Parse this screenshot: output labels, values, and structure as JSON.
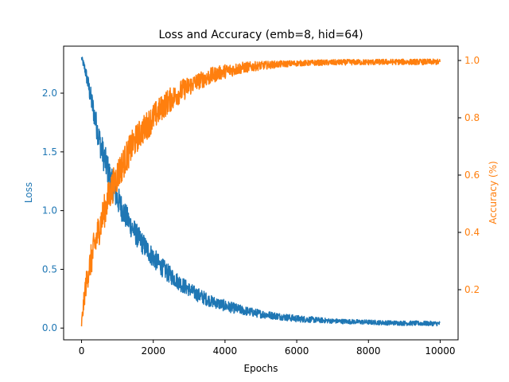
{
  "chart_data": {
    "type": "line",
    "title": "Loss and Accuracy (emb=8, hid=64)",
    "xlabel": "Epochs",
    "ylabel_left": "Loss",
    "ylabel_right": "Accuracy (%)",
    "xlim": [
      -500,
      10500
    ],
    "ylim_left": [
      -0.1,
      2.4
    ],
    "ylim_right": [
      0.025,
      1.05
    ],
    "x_ticks": [
      0,
      2000,
      4000,
      6000,
      8000,
      10000
    ],
    "x_tick_labels": [
      "0",
      "2000",
      "4000",
      "6000",
      "8000",
      "10000"
    ],
    "left_ticks": [
      0.0,
      0.5,
      1.0,
      1.5,
      2.0
    ],
    "left_tick_labels": [
      "0.0",
      "0.5",
      "1.0",
      "1.5",
      "2.0"
    ],
    "right_ticks": [
      0.2,
      0.4,
      0.6,
      0.8,
      1.0
    ],
    "right_tick_labels": [
      "0.2",
      "0.4",
      "0.6",
      "0.8",
      "1.0"
    ],
    "grid": false,
    "colors": {
      "loss": "#1f77b4",
      "accuracy": "#ff7f0e",
      "axis": "#000000"
    },
    "series": [
      {
        "axis": "left",
        "x": [
          0,
          100,
          200,
          300,
          400,
          500,
          600,
          700,
          800,
          900,
          1000,
          1200,
          1400,
          1600,
          1800,
          2000,
          2200,
          2400,
          2600,
          2800,
          3000,
          3200,
          3400,
          3600,
          3800,
          4000,
          4500,
          5000,
          5500,
          6000,
          6500,
          7000,
          7500,
          8000,
          8500,
          9000,
          9500,
          10000
        ],
        "y": [
          2.3,
          2.2,
          2.05,
          1.9,
          1.75,
          1.6,
          1.48,
          1.38,
          1.28,
          1.18,
          1.1,
          0.97,
          0.86,
          0.76,
          0.68,
          0.6,
          0.53,
          0.47,
          0.42,
          0.37,
          0.33,
          0.29,
          0.26,
          0.23,
          0.21,
          0.19,
          0.15,
          0.12,
          0.1,
          0.08,
          0.07,
          0.06,
          0.055,
          0.05,
          0.045,
          0.042,
          0.04,
          0.038
        ],
        "noise": [
          0.02,
          0.05,
          0.08,
          0.1,
          0.11,
          0.12,
          0.13,
          0.13,
          0.13,
          0.12,
          0.12,
          0.11,
          0.1,
          0.1,
          0.09,
          0.09,
          0.08,
          0.08,
          0.07,
          0.07,
          0.06,
          0.06,
          0.06,
          0.05,
          0.05,
          0.05,
          0.04,
          0.035,
          0.03,
          0.03,
          0.025,
          0.02,
          0.02,
          0.02,
          0.02,
          0.02,
          0.02,
          0.02
        ]
      },
      {
        "axis": "right",
        "x": [
          0,
          100,
          200,
          300,
          400,
          500,
          600,
          700,
          800,
          900,
          1000,
          1200,
          1400,
          1600,
          1800,
          2000,
          2200,
          2400,
          2600,
          2800,
          3000,
          3200,
          3400,
          3600,
          3800,
          4000,
          4500,
          5000,
          5500,
          6000,
          6500,
          7000,
          7500,
          8000,
          8500,
          9000,
          9500,
          10000
        ],
        "y": [
          0.08,
          0.2,
          0.27,
          0.32,
          0.37,
          0.42,
          0.46,
          0.5,
          0.54,
          0.57,
          0.6,
          0.65,
          0.7,
          0.74,
          0.77,
          0.8,
          0.83,
          0.855,
          0.875,
          0.895,
          0.91,
          0.925,
          0.935,
          0.945,
          0.955,
          0.962,
          0.975,
          0.982,
          0.987,
          0.99,
          0.992,
          0.993,
          0.994,
          0.994,
          0.995,
          0.995,
          0.995,
          0.995
        ],
        "noise": [
          0.02,
          0.04,
          0.05,
          0.06,
          0.06,
          0.06,
          0.06,
          0.06,
          0.06,
          0.06,
          0.06,
          0.055,
          0.055,
          0.05,
          0.05,
          0.05,
          0.045,
          0.045,
          0.04,
          0.04,
          0.035,
          0.03,
          0.03,
          0.03,
          0.025,
          0.025,
          0.02,
          0.015,
          0.012,
          0.01,
          0.01,
          0.01,
          0.01,
          0.01,
          0.01,
          0.01,
          0.01,
          0.01
        ]
      }
    ]
  }
}
